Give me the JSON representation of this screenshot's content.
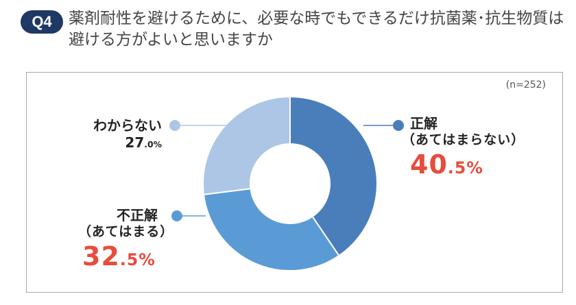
{
  "header": {
    "badge": "Q4",
    "question": "薬剤耐性を避けるために、必要な時でもできるだけ抗菌薬･抗生物質は避ける方がよいと思いますか"
  },
  "chart_data": {
    "type": "pie",
    "note": "(n=252)",
    "slices": [
      {
        "key": "correct",
        "name": "正解",
        "sub": "（あてはまらない）",
        "value": 40.5,
        "int": "40",
        "dec": ".5%",
        "color": "#4a7ebb"
      },
      {
        "key": "incorrect",
        "name": "不正解",
        "sub": "（あてはまる）",
        "value": 32.5,
        "int": "32",
        "dec": ".5%",
        "color": "#5b9bd5"
      },
      {
        "key": "unknown",
        "name": "わからない",
        "sub": "",
        "value": 27.0,
        "int": "27",
        "dec": ".0%",
        "color": "#adc6e5"
      }
    ]
  }
}
